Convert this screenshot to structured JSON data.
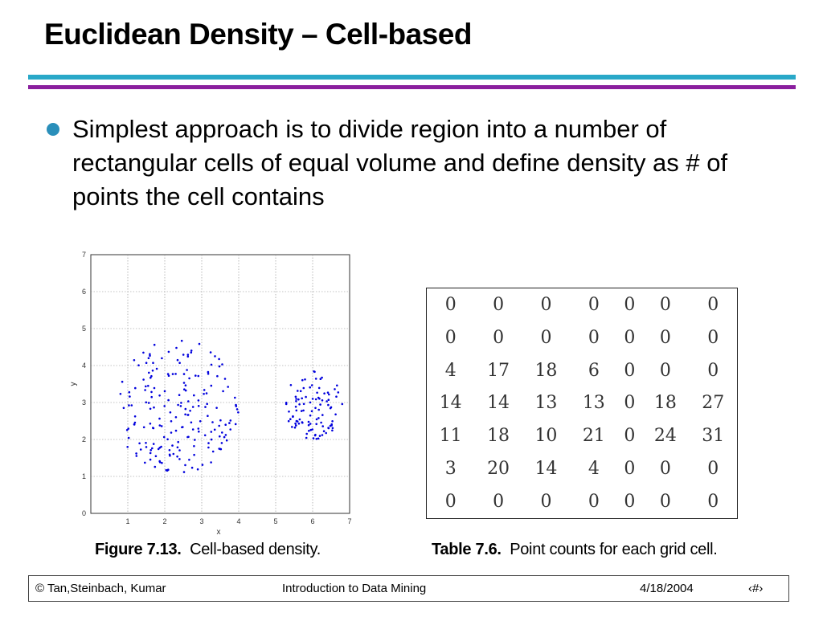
{
  "title": "Euclidean Density – Cell-based",
  "bullet": "Simplest approach is to divide region into a number of rectangular cells of equal volume and define density as # of points the cell contains",
  "figure": {
    "label": "Figure 7.13.",
    "text": "Cell-based density."
  },
  "table_caption": {
    "label": "Table 7.6.",
    "text": "Point counts for each grid cell."
  },
  "chart_data": [
    {
      "type": "scatter",
      "xlabel": "x",
      "ylabel": "y",
      "xlim": [
        0,
        7
      ],
      "ylim": [
        0,
        7
      ],
      "xticks": [
        "1",
        "2",
        "3",
        "4",
        "5",
        "6",
        "7"
      ],
      "yticks": [
        "0",
        "1",
        "2",
        "3",
        "4",
        "5",
        "6",
        "7"
      ],
      "grid": true,
      "point_color": "#0000dd",
      "clusters": [
        {
          "cx": 2.3,
          "cy": 2.9,
          "rx": 1.7,
          "ry": 1.85,
          "count": 200
        },
        {
          "cx": 6.05,
          "cy": 2.95,
          "rx": 0.82,
          "ry": 0.95,
          "count": 100
        }
      ]
    },
    {
      "type": "table",
      "rows": [
        [
          "0",
          "0",
          "0",
          "0",
          "0",
          "0",
          "0"
        ],
        [
          "0",
          "0",
          "0",
          "0",
          "0",
          "0",
          "0"
        ],
        [
          "4",
          "17",
          "18",
          "6",
          "0",
          "0",
          "0"
        ],
        [
          "14",
          "14",
          "13",
          "13",
          "0",
          "18",
          "27"
        ],
        [
          "11",
          "18",
          "10",
          "21",
          "0",
          "24",
          "31"
        ],
        [
          "3",
          "20",
          "14",
          "4",
          "0",
          "0",
          "0"
        ],
        [
          "0",
          "0",
          "0",
          "0",
          "0",
          "0",
          "0"
        ]
      ]
    }
  ],
  "footer": {
    "left": "© Tan,Steinbach, Kumar",
    "center": "Introduction to Data Mining",
    "date": "4/18/2004",
    "page": "‹#›"
  }
}
